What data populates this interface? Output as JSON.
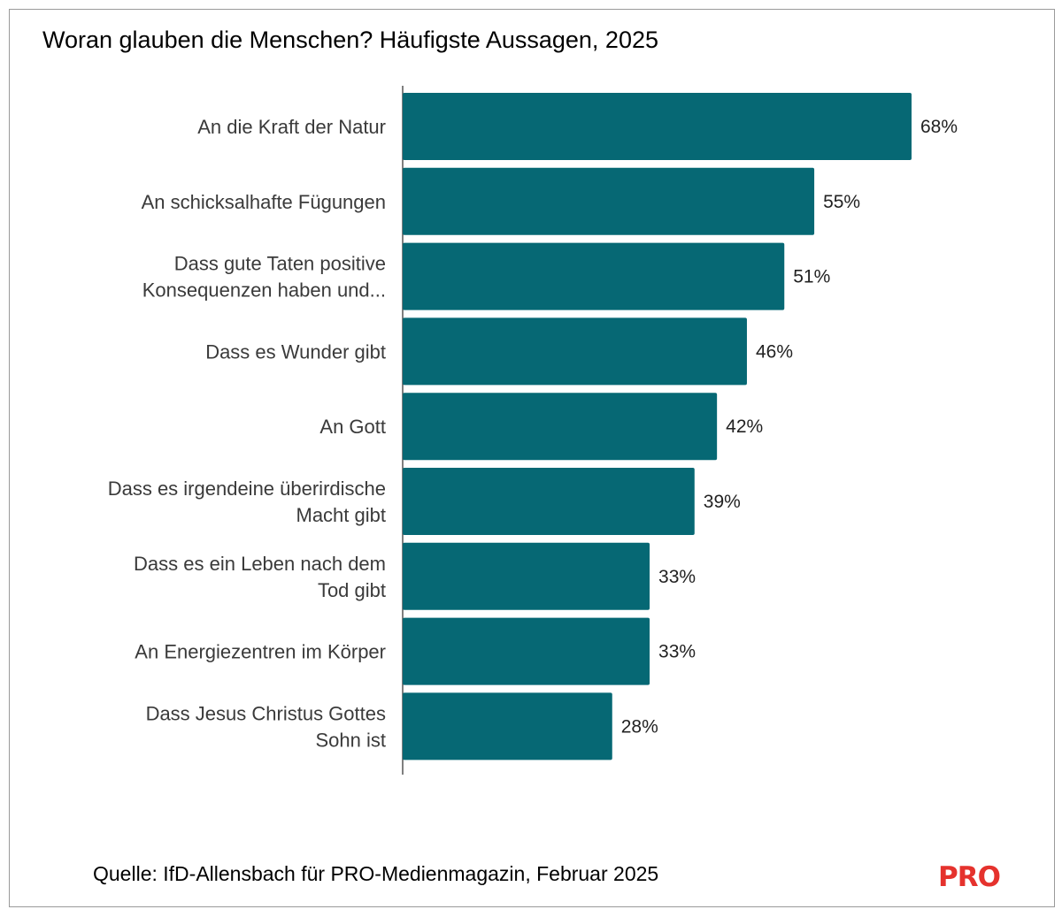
{
  "title": "Woran glauben die Menschen? Häufigste Aussagen, 2025",
  "source": "Quelle: IfD-Allensbach für PRO-Medienmagazin, Februar 2025",
  "logo_text": "PRO",
  "colors": {
    "bar": "#066874",
    "axis": "#555555",
    "logo": "#e5322d"
  },
  "chart_data": {
    "type": "bar",
    "orientation": "horizontal",
    "categories": [
      "An die Kraft der Natur",
      "An schicksalhafte Fügungen",
      "Dass gute Taten positive Konsequenzen haben und...",
      "Dass es Wunder gibt",
      "An Gott",
      "Dass es irgendeine überirdische Macht gibt",
      "Dass es ein Leben nach dem Tod gibt",
      "An Energiezentren im Körper",
      "Dass Jesus Christus Gottes Sohn ist"
    ],
    "category_lines": [
      [
        "An die Kraft der Natur"
      ],
      [
        "An schicksalhafte Fügungen"
      ],
      [
        "Dass gute Taten positive",
        "Konsequenzen haben und..."
      ],
      [
        "Dass es Wunder gibt"
      ],
      [
        "An Gott"
      ],
      [
        "Dass es irgendeine überirdische",
        "Macht gibt"
      ],
      [
        "Dass es ein Leben nach dem",
        "Tod gibt"
      ],
      [
        "An Energiezentren im Körper"
      ],
      [
        "Dass Jesus Christus Gottes",
        "Sohn ist"
      ]
    ],
    "values": [
      68,
      55,
      51,
      46,
      42,
      39,
      33,
      33,
      28
    ],
    "value_labels": [
      "68%",
      "55%",
      "51%",
      "46%",
      "42%",
      "39%",
      "33%",
      "33%",
      "28%"
    ],
    "unit": "%",
    "xlim": [
      0,
      68
    ],
    "grid": false,
    "legend": "none"
  }
}
